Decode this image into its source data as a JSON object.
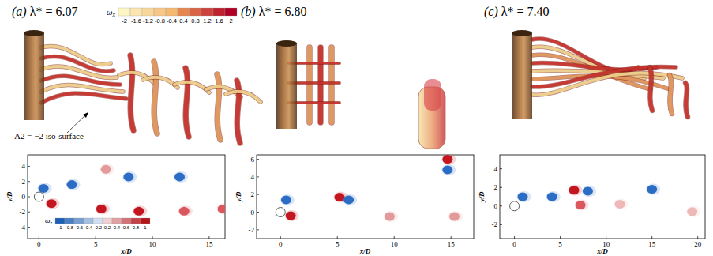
{
  "chart_data": [
    {
      "type": "scatter",
      "title": "(a) λ* = 6.07",
      "xlabel": "x/D",
      "ylabel": "y/D",
      "xlim": [
        -1,
        16.4
      ],
      "ylim": [
        -5.5,
        5.5
      ],
      "xticks": [
        0,
        5,
        10,
        15
      ],
      "yticks": [
        -4,
        -2,
        0,
        2,
        4
      ],
      "x": [
        0.4,
        1.1,
        2.9,
        5.5,
        5.9,
        7.9,
        8.8,
        12.4,
        12.8,
        16.2
      ],
      "values": [
        1.1,
        -0.9,
        1.6,
        -1.6,
        3.6,
        2.6,
        -1.9,
        2.6,
        -1.9,
        -1.6
      ],
      "colors": [
        "#2b6cc4",
        "#c3161f",
        "#2b6cc4",
        "#c3161f",
        "#e39a9a",
        "#2b6cc4",
        "#c3161f",
        "#2b6cc4",
        "#d9575d",
        "#d9575d"
      ],
      "colorbars": [
        {
          "label": "ωx",
          "range": [
            -2,
            2
          ],
          "ticks": [
            -2,
            -1.6,
            -1.2,
            -0.8,
            -0.4,
            0.4,
            0.8,
            1.2,
            1.6,
            2
          ]
        },
        {
          "label": "ωz",
          "range": [
            -1,
            1
          ],
          "ticks": [
            -1,
            -0.8,
            -0.6,
            -0.4,
            -0.2,
            0.2,
            0.4,
            0.6,
            0.8,
            1
          ]
        }
      ],
      "annotations": [
        "Λ2 = −2 iso-surface"
      ]
    },
    {
      "type": "scatter",
      "title": "(b) λ* = 6.80",
      "xlabel": "x/D",
      "ylabel": "y/D",
      "xlim": [
        -2.1,
        17
      ],
      "ylim": [
        -3,
        6.5
      ],
      "xticks": [
        0,
        5,
        10,
        15
      ],
      "yticks": [
        -2,
        0,
        2,
        4,
        6
      ],
      "x": [
        0.5,
        0.9,
        5.2,
        6.0,
        9.6,
        14.7,
        14.7,
        15.3
      ],
      "values": [
        1.4,
        -0.4,
        1.7,
        1.4,
        -0.5,
        6.0,
        4.8,
        -0.5
      ],
      "colors": [
        "#2b6cc4",
        "#c3161f",
        "#c3161f",
        "#2b6cc4",
        "#e39a9a",
        "#c3161f",
        "#2b6cc4",
        "#e39a9a"
      ]
    },
    {
      "type": "scatter",
      "title": "(c) λ* = 7.40",
      "xlabel": "x/D",
      "ylabel": "y/D",
      "xlim": [
        -1.6,
        20.8
      ],
      "ylim": [
        -3.5,
        5.5
      ],
      "xticks": [
        0,
        5,
        10,
        15,
        20
      ],
      "yticks": [
        -2,
        0,
        2,
        4
      ],
      "x": [
        0.9,
        4.1,
        6.5,
        8.0,
        7.2,
        11.5,
        15.0,
        19.4
      ],
      "values": [
        1.0,
        1.0,
        1.7,
        1.6,
        0.1,
        0.2,
        1.8,
        -0.6
      ],
      "colors": [
        "#2b6cc4",
        "#2b6cc4",
        "#c3161f",
        "#2b6cc4",
        "#d9575d",
        "#efb8b8",
        "#2b6cc4",
        "#efb8b8"
      ]
    }
  ]
}
